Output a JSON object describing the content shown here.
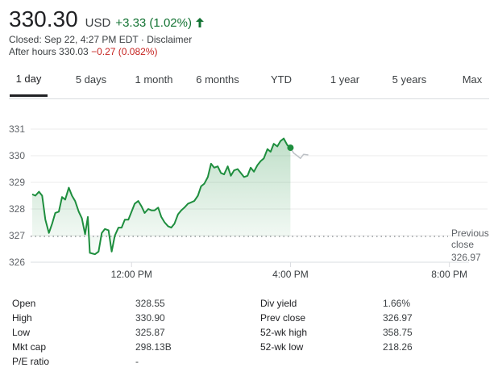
{
  "quote": {
    "price": "330.30",
    "currency": "USD",
    "change": "+3.33 (1.02%)",
    "closed_text": "Closed: Sep 22, 4:27 PM EDT · Disclaimer",
    "after_hours_label": "After hours 330.03",
    "after_hours_change": "−0.27 (0.082%)",
    "colors": {
      "up": "#137333",
      "down": "#c5221f",
      "line": "#1e8e3e"
    }
  },
  "tabs": [
    {
      "label": "1 day",
      "active": true
    },
    {
      "label": "5 days"
    },
    {
      "label": "1 month"
    },
    {
      "label": "6 months"
    },
    {
      "label": "YTD"
    },
    {
      "label": "1 year"
    },
    {
      "label": "5 years"
    },
    {
      "label": "Max"
    }
  ],
  "chart_data": {
    "type": "line",
    "y_ticks": [
      "331",
      "330",
      "329",
      "328",
      "327",
      "326"
    ],
    "x_ticks": [
      "12:00 PM",
      "4:00 PM",
      "8:00 PM"
    ],
    "ylim": [
      326,
      331
    ],
    "previous_close": {
      "label_line1": "Previous",
      "label_line2": "close",
      "value": "326.97"
    },
    "regular_session": [
      [
        9.5,
        328.55
      ],
      [
        9.58,
        328.5
      ],
      [
        9.67,
        328.65
      ],
      [
        9.75,
        328.5
      ],
      [
        9.83,
        327.6
      ],
      [
        9.92,
        327.1
      ],
      [
        10.0,
        327.45
      ],
      [
        10.08,
        327.85
      ],
      [
        10.17,
        327.9
      ],
      [
        10.25,
        328.45
      ],
      [
        10.33,
        328.35
      ],
      [
        10.42,
        328.8
      ],
      [
        10.5,
        328.5
      ],
      [
        10.58,
        328.3
      ],
      [
        10.67,
        327.9
      ],
      [
        10.75,
        327.65
      ],
      [
        10.83,
        327.05
      ],
      [
        10.9,
        327.7
      ],
      [
        10.95,
        326.35
      ],
      [
        11.08,
        326.3
      ],
      [
        11.17,
        326.4
      ],
      [
        11.25,
        327.1
      ],
      [
        11.33,
        327.25
      ],
      [
        11.42,
        327.2
      ],
      [
        11.5,
        326.4
      ],
      [
        11.58,
        327.0
      ],
      [
        11.67,
        327.3
      ],
      [
        11.75,
        327.3
      ],
      [
        11.83,
        327.6
      ],
      [
        11.92,
        327.6
      ],
      [
        12.0,
        327.9
      ],
      [
        12.08,
        328.2
      ],
      [
        12.17,
        328.3
      ],
      [
        12.25,
        328.1
      ],
      [
        12.33,
        327.85
      ],
      [
        12.42,
        328.0
      ],
      [
        12.5,
        327.95
      ],
      [
        12.58,
        327.95
      ],
      [
        12.67,
        328.05
      ],
      [
        12.75,
        327.7
      ],
      [
        12.83,
        327.5
      ],
      [
        12.92,
        327.35
      ],
      [
        13.0,
        327.3
      ],
      [
        13.08,
        327.45
      ],
      [
        13.17,
        327.8
      ],
      [
        13.25,
        327.95
      ],
      [
        13.33,
        328.05
      ],
      [
        13.42,
        328.2
      ],
      [
        13.5,
        328.25
      ],
      [
        13.58,
        328.3
      ],
      [
        13.67,
        328.5
      ],
      [
        13.75,
        328.85
      ],
      [
        13.83,
        328.95
      ],
      [
        13.92,
        329.2
      ],
      [
        14.0,
        329.7
      ],
      [
        14.08,
        329.55
      ],
      [
        14.17,
        329.6
      ],
      [
        14.25,
        329.35
      ],
      [
        14.33,
        329.3
      ],
      [
        14.42,
        329.6
      ],
      [
        14.5,
        329.25
      ],
      [
        14.58,
        329.45
      ],
      [
        14.67,
        329.5
      ],
      [
        14.75,
        329.35
      ],
      [
        14.83,
        329.2
      ],
      [
        14.92,
        329.25
      ],
      [
        15.0,
        329.55
      ],
      [
        15.08,
        329.4
      ],
      [
        15.17,
        329.65
      ],
      [
        15.25,
        329.8
      ],
      [
        15.33,
        329.9
      ],
      [
        15.42,
        330.25
      ],
      [
        15.5,
        330.15
      ],
      [
        15.58,
        330.45
      ],
      [
        15.67,
        330.35
      ],
      [
        15.75,
        330.55
      ],
      [
        15.83,
        330.65
      ],
      [
        15.92,
        330.4
      ],
      [
        16.0,
        330.3
      ]
    ],
    "after_hours": [
      [
        16.0,
        330.3
      ],
      [
        16.08,
        330.1
      ],
      [
        16.17,
        330.0
      ],
      [
        16.25,
        329.9
      ],
      [
        16.33,
        330.05
      ],
      [
        16.45,
        330.03
      ]
    ]
  },
  "stats": {
    "left": [
      {
        "label": "Open",
        "value": "328.55"
      },
      {
        "label": "High",
        "value": "330.90"
      },
      {
        "label": "Low",
        "value": "325.87"
      },
      {
        "label": "Mkt cap",
        "value": "298.13B"
      },
      {
        "label": "P/E ratio",
        "value": "-"
      }
    ],
    "right": [
      {
        "label": "Div yield",
        "value": "1.66%"
      },
      {
        "label": "Prev close",
        "value": "326.97"
      },
      {
        "label": "52-wk high",
        "value": "358.75"
      },
      {
        "label": "52-wk low",
        "value": "218.26"
      }
    ]
  }
}
